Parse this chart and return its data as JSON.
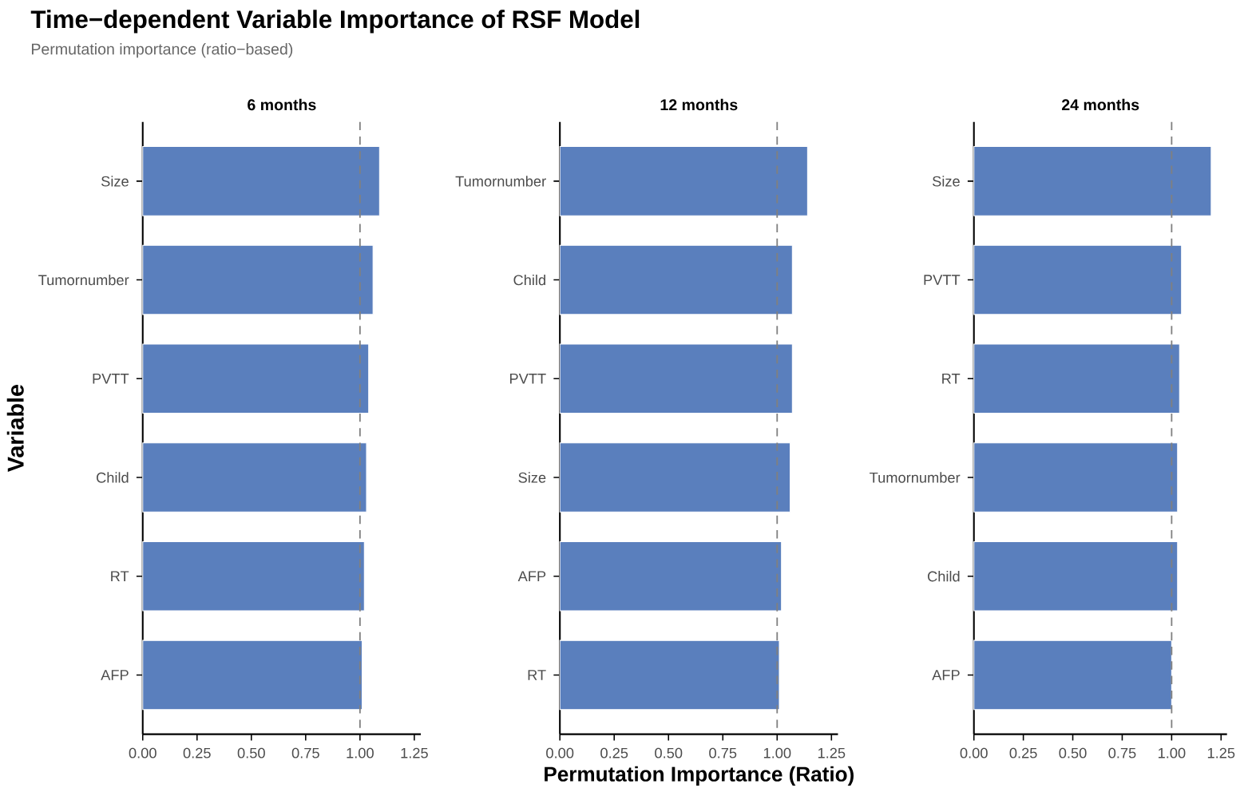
{
  "chart_data": [
    {
      "type": "bar",
      "orientation": "horizontal",
      "title": "Time−dependent Variable Importance of RSF Model",
      "subtitle": "Permutation importance (ratio−based)",
      "ylabel": "Variable",
      "categories": [
        "Size",
        "Tumornumber",
        "PVTT",
        "Child",
        "RT",
        "AFP"
      ],
      "series": [
        {
          "color": "#5a7fbd",
          "values": [
            1.09,
            1.06,
            1.04,
            1.03,
            1.02,
            1.01
          ]
        }
      ],
      "annotations": [
        "6 months"
      ],
      "xlim": [
        0,
        1.28
      ],
      "xticks": [
        {
          "value": 0,
          "label": "0.00"
        },
        {
          "value": 0.25,
          "label": "0.25"
        },
        {
          "value": 0.5,
          "label": "0.50"
        },
        {
          "value": 0.75,
          "label": "0.75"
        },
        {
          "value": 1,
          "label": "1.00"
        },
        {
          "value": 1.25,
          "label": "1.25"
        }
      ],
      "ref_lines": [
        {
          "axis": "x",
          "value": 1,
          "color": "#808080",
          "line_style": "dashed"
        }
      ],
      "grid": false
    },
    {
      "type": "bar",
      "orientation": "horizontal",
      "xlabel": "Permutation Importance (Ratio)",
      "categories": [
        "Tumornumber",
        "Child",
        "PVTT",
        "Size",
        "AFP",
        "RT"
      ],
      "series": [
        {
          "color": "#5a7fbd",
          "values": [
            1.14,
            1.07,
            1.07,
            1.06,
            1.02,
            1.01
          ]
        }
      ],
      "annotations": [
        "12 months"
      ],
      "xlim": [
        0,
        1.28
      ],
      "xticks": [
        {
          "value": 0,
          "label": "0.00"
        },
        {
          "value": 0.25,
          "label": "0.25"
        },
        {
          "value": 0.5,
          "label": "0.50"
        },
        {
          "value": 0.75,
          "label": "0.75"
        },
        {
          "value": 1,
          "label": "1.00"
        },
        {
          "value": 1.25,
          "label": "1.25"
        }
      ],
      "ref_lines": [
        {
          "axis": "x",
          "value": 1,
          "color": "#808080",
          "line_style": "dashed"
        }
      ],
      "grid": false
    },
    {
      "type": "bar",
      "orientation": "horizontal",
      "categories": [
        "Size",
        "PVTT",
        "RT",
        "Tumornumber",
        "Child",
        "AFP"
      ],
      "series": [
        {
          "color": "#5a7fbd",
          "values": [
            1.2,
            1.05,
            1.04,
            1.03,
            1.03,
            1.0
          ]
        }
      ],
      "annotations": [
        "24 months"
      ],
      "xlim": [
        0,
        1.28
      ],
      "xticks": [
        {
          "value": 0,
          "label": "0.00"
        },
        {
          "value": 0.25,
          "label": "0.25"
        },
        {
          "value": 0.5,
          "label": "0.50"
        },
        {
          "value": 0.75,
          "label": "0.75"
        },
        {
          "value": 1,
          "label": "1.00"
        },
        {
          "value": 1.25,
          "label": "1.25"
        }
      ],
      "ref_lines": [
        {
          "axis": "x",
          "value": 1,
          "color": "#808080",
          "line_style": "dashed"
        }
      ],
      "grid": false
    }
  ]
}
